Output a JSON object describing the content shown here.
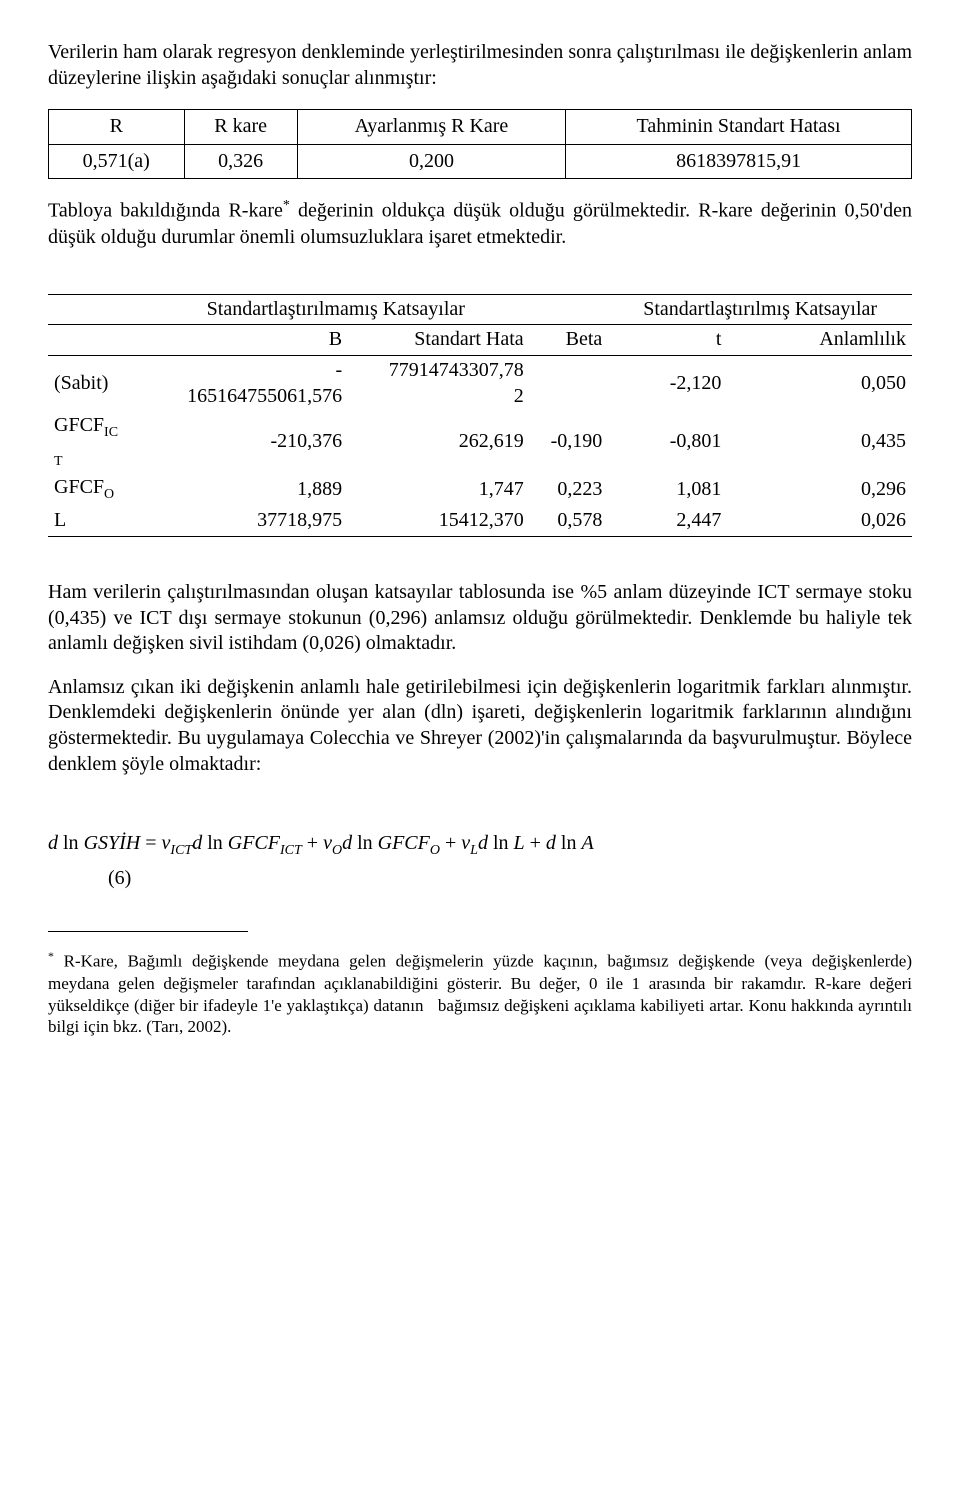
{
  "para1": "Verilerin ham olarak regresyon denkleminde yerleştirilmesinden sonra çalıştırılması ile değişkenlerin anlam düzeylerine ilişkin aşağıdaki sonuçlar alınmıştır:",
  "table1": {
    "headers": [
      "R",
      "R kare",
      "Ayarlanmış R Kare",
      "Tahminin Standart Hatası"
    ],
    "row": [
      "0,571(a)",
      "0,326",
      "0,200",
      "8618397815,91"
    ]
  },
  "para2_a": "Tabloya bakıldığında R-kare",
  "para2_b": " değerinin oldukça düşük olduğu görülmektedir. R-kare değerinin 0,50'den düşük olduğu durumlar önemli olumsuzluklara işaret etmektedir.",
  "sup_star": "*",
  "table2": {
    "group_headers": [
      "Standartlaştırılmamış Katsayılar",
      "Standartlaştırılmış Katsayılar"
    ],
    "col_headers": [
      "",
      "B",
      "Standart Hata",
      "Beta",
      "t",
      "Anlamlılık"
    ],
    "rows": [
      {
        "label": "(Sabit)",
        "B_a": "-",
        "B_b": "165164755061,576",
        "SH_a": "77914743307,78",
        "SH_b": "2",
        "Beta": "",
        "t": "-2,120",
        "sig": "0,050"
      },
      {
        "label_a": "GFCF",
        "label_sub_a": "IC",
        "label_sub_b": "T",
        "B": "-210,376",
        "SH": "262,619",
        "Beta": "-0,190",
        "t": "-0,801",
        "sig": "0,435"
      },
      {
        "label_a": "GFCF",
        "label_sub_a": "O",
        "B": "1,889",
        "SH": "1,747",
        "Beta": "0,223",
        "t": "1,081",
        "sig": "0,296"
      },
      {
        "label_a": "L",
        "B": "37718,975",
        "SH": "15412,370",
        "Beta": "0,578",
        "t": "2,447",
        "sig": "0,026"
      }
    ]
  },
  "para3": "Ham verilerin çalıştırılmasından oluşan katsayılar tablosunda ise %5 anlam düzeyinde ICT sermaye stoku (0,435) ve ICT dışı sermaye stokunun (0,296) anlamsız olduğu görülmektedir. Denklemde bu haliyle tek anlamlı değişken sivil istihdam (0,026) olmaktadır.",
  "para4": "Anlamsız çıkan iki değişkenin anlamlı hale getirilebilmesi için değişkenlerin logaritmik farkları alınmıştır. Denklemdeki değişkenlerin önünde yer alan (dln) işareti, değişkenlerin logaritmik farklarının alındığını göstermektedir. Bu uygulamaya Colecchia ve Shreyer (2002)'in çalışmalarında da başvurulmuştur. Böylece denklem şöyle olmaktadır:",
  "equation": {
    "p1": "d",
    "p2": " ln ",
    "p3": "GSYİH",
    "p4": " = ",
    "v": "v",
    "s_ict": "ICT",
    "gfcf": "GFCF",
    "s_o": "O",
    "s_l": "L",
    "L": "L",
    "A": "A",
    "plus": " + ",
    "num": "(6)"
  },
  "footnote_star": "*",
  "footnote": " R-Kare, Bağımlı değişkende meydana gelen değişmelerin yüzde kaçının, bağımsız değişkende (veya değişkenlerde) meydana gelen değişmeler tarafından açıklanabildiğini gösterir. Bu değer, 0 ile 1 arasında bir rakamdır. R-kare değeri yükseldikçe (diğer bir ifadeyle 1'e yaklaştıkça) datanın   bağımsız değişkeni açıklama kabiliyeti artar. Konu hakkında ayrıntılı bilgi için bkz. (Tarı, 2002)."
}
